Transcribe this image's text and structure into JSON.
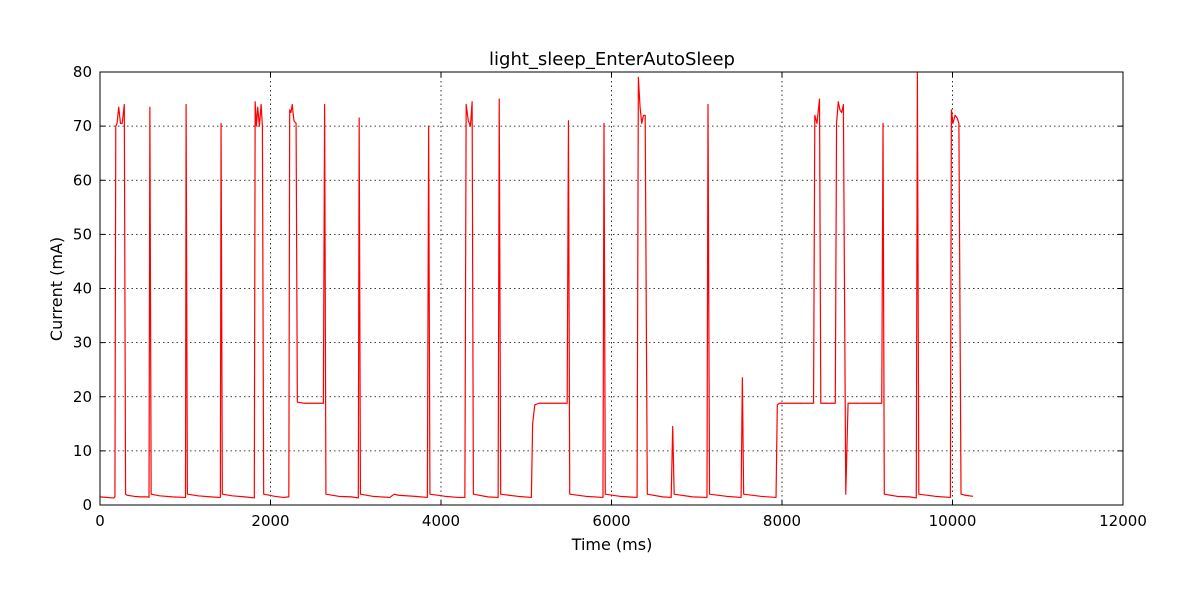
{
  "chart_data": {
    "type": "line",
    "title": "light_sleep_EnterAutoSleep",
    "xlabel": "Time (ms)",
    "ylabel": "Current (mA)",
    "xlim": [
      0,
      12000
    ],
    "ylim": [
      0,
      80
    ],
    "xticks": [
      0,
      2000,
      4000,
      6000,
      8000,
      10000,
      12000
    ],
    "yticks": [
      0,
      10,
      20,
      30,
      40,
      50,
      60,
      70,
      80
    ],
    "grid": true,
    "series": [
      {
        "color": "#ff0000",
        "points": [
          [
            0,
            1.5
          ],
          [
            160,
            1.3
          ],
          [
            175,
            1.5
          ],
          [
            185,
            70
          ],
          [
            200,
            70.5
          ],
          [
            220,
            73.5
          ],
          [
            240,
            70.5
          ],
          [
            260,
            70.5
          ],
          [
            285,
            74
          ],
          [
            300,
            2
          ],
          [
            320,
            1.8
          ],
          [
            400,
            1.6
          ],
          [
            480,
            1.5
          ],
          [
            560,
            1.5
          ],
          [
            575,
            1.4
          ],
          [
            585,
            73.5
          ],
          [
            600,
            2
          ],
          [
            700,
            1.7
          ],
          [
            850,
            1.5
          ],
          [
            990,
            1.4
          ],
          [
            1003,
            1.4
          ],
          [
            1010,
            74
          ],
          [
            1025,
            2
          ],
          [
            1150,
            1.7
          ],
          [
            1300,
            1.5
          ],
          [
            1400,
            1.4
          ],
          [
            1412,
            1.4
          ],
          [
            1420,
            70.5
          ],
          [
            1435,
            2
          ],
          [
            1550,
            1.7
          ],
          [
            1700,
            1.5
          ],
          [
            1810,
            1.3
          ],
          [
            1820,
            74.5
          ],
          [
            1835,
            70
          ],
          [
            1850,
            73.5
          ],
          [
            1870,
            70
          ],
          [
            1890,
            74
          ],
          [
            1905,
            70
          ],
          [
            1920,
            2
          ],
          [
            2050,
            1.6
          ],
          [
            2150,
            1.4
          ],
          [
            2215,
            1.5
          ],
          [
            2225,
            73
          ],
          [
            2240,
            72.5
          ],
          [
            2255,
            74
          ],
          [
            2275,
            71
          ],
          [
            2300,
            70.5
          ],
          [
            2315,
            19
          ],
          [
            2400,
            18.8
          ],
          [
            2500,
            18.8
          ],
          [
            2620,
            18.8
          ],
          [
            2635,
            74
          ],
          [
            2650,
            2
          ],
          [
            2800,
            1.6
          ],
          [
            2950,
            1.5
          ],
          [
            3030,
            1.3
          ],
          [
            3040,
            71.5
          ],
          [
            3055,
            2
          ],
          [
            3200,
            1.6
          ],
          [
            3400,
            1.4
          ],
          [
            3450,
            2
          ],
          [
            3500,
            1.8
          ],
          [
            3700,
            1.6
          ],
          [
            3840,
            1.4
          ],
          [
            3855,
            70
          ],
          [
            3870,
            2
          ],
          [
            4050,
            1.6
          ],
          [
            4200,
            1.4
          ],
          [
            4280,
            1.4
          ],
          [
            4295,
            74
          ],
          [
            4320,
            71
          ],
          [
            4345,
            70
          ],
          [
            4365,
            74.5
          ],
          [
            4380,
            2
          ],
          [
            4550,
            1.5
          ],
          [
            4670,
            1.4
          ],
          [
            4683,
            75
          ],
          [
            4700,
            2
          ],
          [
            4900,
            1.6
          ],
          [
            5060,
            1.4
          ],
          [
            5075,
            15
          ],
          [
            5100,
            18.5
          ],
          [
            5150,
            18.8
          ],
          [
            5300,
            18.8
          ],
          [
            5480,
            18.8
          ],
          [
            5495,
            71
          ],
          [
            5510,
            2
          ],
          [
            5700,
            1.6
          ],
          [
            5900,
            1.4
          ],
          [
            5912,
            70.5
          ],
          [
            5927,
            2
          ],
          [
            6100,
            1.6
          ],
          [
            6300,
            1.4
          ],
          [
            6315,
            79
          ],
          [
            6335,
            73.5
          ],
          [
            6355,
            70.5
          ],
          [
            6375,
            72
          ],
          [
            6395,
            72
          ],
          [
            6420,
            2
          ],
          [
            6600,
            1.5
          ],
          [
            6700,
            1.4
          ],
          [
            6718,
            14.5
          ],
          [
            6735,
            2
          ],
          [
            6950,
            1.5
          ],
          [
            7120,
            1.4
          ],
          [
            7132,
            74
          ],
          [
            7150,
            2
          ],
          [
            7350,
            1.6
          ],
          [
            7520,
            1.4
          ],
          [
            7535,
            23.5
          ],
          [
            7550,
            2
          ],
          [
            7750,
            1.6
          ],
          [
            7930,
            1.4
          ],
          [
            7945,
            18.5
          ],
          [
            7970,
            18.8
          ],
          [
            8100,
            18.8
          ],
          [
            8250,
            18.8
          ],
          [
            8370,
            18.8
          ],
          [
            8385,
            72
          ],
          [
            8410,
            70.5
          ],
          [
            8440,
            75
          ],
          [
            8455,
            18.8
          ],
          [
            8530,
            18.8
          ],
          [
            8625,
            18.8
          ],
          [
            8640,
            70.5
          ],
          [
            8660,
            74.5
          ],
          [
            8680,
            73
          ],
          [
            8700,
            72.5
          ],
          [
            8720,
            74
          ],
          [
            8748,
            2
          ],
          [
            8775,
            18.8
          ],
          [
            8900,
            18.8
          ],
          [
            9050,
            18.8
          ],
          [
            9170,
            18.8
          ],
          [
            9185,
            70.5
          ],
          [
            9200,
            2
          ],
          [
            9350,
            1.6
          ],
          [
            9500,
            1.5
          ],
          [
            9575,
            1.3
          ],
          [
            9588,
            80
          ],
          [
            9605,
            2
          ],
          [
            9800,
            1.6
          ],
          [
            9975,
            1.4
          ],
          [
            9987,
            73
          ],
          [
            10005,
            70.5
          ],
          [
            10030,
            72
          ],
          [
            10055,
            71.5
          ],
          [
            10075,
            70.5
          ],
          [
            10100,
            2
          ],
          [
            10150,
            1.8
          ],
          [
            10240,
            1.6
          ]
        ]
      }
    ]
  }
}
